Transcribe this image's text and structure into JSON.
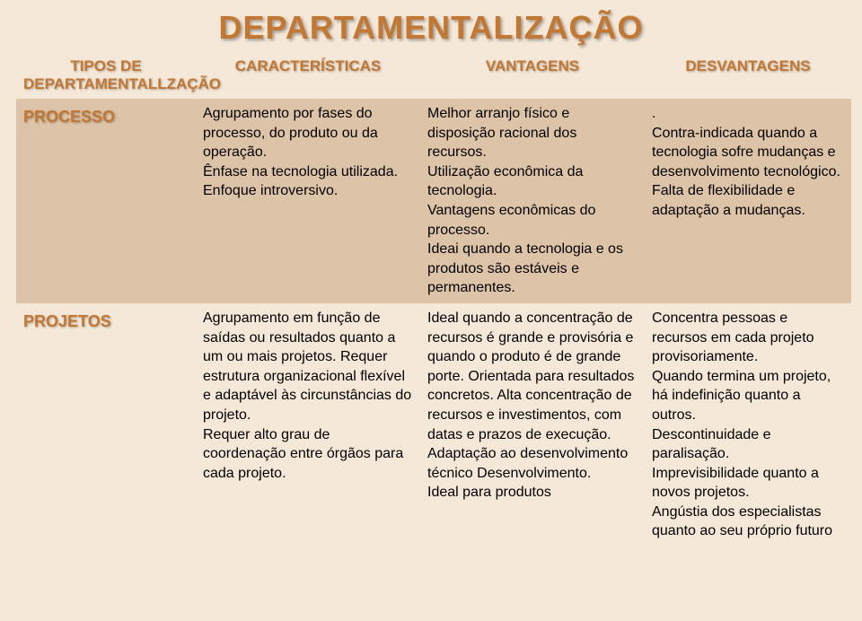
{
  "title": "DEPARTAMENTALIZAÇÃO",
  "colors": {
    "accent": "#c27733",
    "bg_light": "#f5e8d8",
    "bg_band": "#ddc3a7",
    "text": "#000000"
  },
  "columns": [
    "TIPOS DE DEPARTAMENTALLZAÇÃO",
    "CARACTERÍSTICAS",
    "VANTAGENS",
    "DESVANTAGENS"
  ],
  "rows": [
    {
      "label": "PROCESSO",
      "caracteristicas": "Agrupamento por fases do processo, do produto ou da operação.\nÊnfase na tecnologia utilizada.\nEnfoque introversivo.",
      "vantagens": "Melhor arranjo físico e disposição racional dos recursos.\nUtilização econômica da tecnologia.\nVantagens econômicas do processo.\nIdeai quando a tecnologia e os produtos são estáveis e permanentes.",
      "desvantagens": ".\nContra-indicada quando a tecnologia sofre mudanças e desenvolvimento tecnológico.\nFalta de flexibilidade e adaptação a mudanças."
    },
    {
      "label": "PROJETOS",
      "caracteristicas": "Agrupamento em função de saídas ou resultados quanto a um ou mais projetos. Requer estrutura organizacional flexível e adaptável às circunstâncias do projeto.\nRequer alto grau de coordenação entre órgãos para cada projeto.",
      "vantagens": "Ideal quando a concentração de recursos é grande e provisória e quando o produto é de grande porte. Orientada para resultados  concretos. Alta concentração de recursos e investimentos, com datas e prazos de execução. Adaptação ao desenvolvimento técnico Desenvolvimento.\nIdeal para produtos",
      "desvantagens": "Concentra pessoas e recursos em cada projeto provisoriamente.\nQuando termina um projeto, há indefinição quanto a outros.\nDescontinuidade e paralisação.\nImprevisibilidade quanto a novos projetos.\nAngústia dos especialistas quanto ao seu próprio futuro"
    }
  ]
}
